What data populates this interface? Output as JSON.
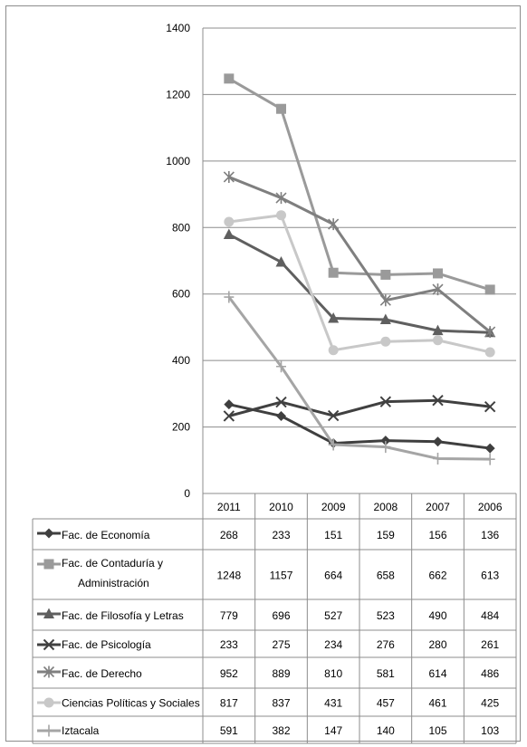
{
  "chart_data": {
    "type": "line",
    "categories": [
      "2011",
      "2010",
      "2009",
      "2008",
      "2007",
      "2006"
    ],
    "ylim": [
      0,
      1400
    ],
    "yticks": [
      0,
      200,
      400,
      600,
      800,
      1000,
      1200,
      1400
    ],
    "grid": true,
    "legend": "data-table-below",
    "series": [
      {
        "name": "Fac. de Economía",
        "name_lines": [
          "Fac. de Economía"
        ],
        "values": [
          268,
          233,
          151,
          159,
          156,
          136
        ],
        "color": "#3f3f3f",
        "marker": "diamond"
      },
      {
        "name": "Fac. de Contaduría y Administración",
        "name_lines": [
          "Fac. de Contaduría y",
          "Administración"
        ],
        "values": [
          1248,
          1157,
          664,
          658,
          662,
          613
        ],
        "color": "#9a9a9a",
        "marker": "square"
      },
      {
        "name": "Fac. de Filosofía y Letras",
        "name_lines": [
          "Fac. de Filosofía y Letras"
        ],
        "values": [
          779,
          696,
          527,
          523,
          490,
          484
        ],
        "color": "#5f5f5f",
        "marker": "triangle"
      },
      {
        "name": "Fac. de Psicología",
        "name_lines": [
          "Fac. de Psicología"
        ],
        "values": [
          233,
          275,
          234,
          276,
          280,
          261
        ],
        "color": "#404040",
        "marker": "x"
      },
      {
        "name": "Fac. de Derecho",
        "name_lines": [
          "Fac. de Derecho"
        ],
        "values": [
          952,
          889,
          810,
          581,
          614,
          486
        ],
        "color": "#7f7f7f",
        "marker": "star"
      },
      {
        "name": "Ciencias Políticas y Sociales",
        "name_lines": [
          "Ciencias Políticas y Sociales"
        ],
        "values": [
          817,
          837,
          431,
          457,
          461,
          425
        ],
        "color": "#c8c8c8",
        "marker": "circle"
      },
      {
        "name": "Iztacala",
        "name_lines": [
          "Iztacala"
        ],
        "values": [
          591,
          382,
          147,
          140,
          105,
          103
        ],
        "color": "#a5a5a5",
        "marker": "plus"
      }
    ]
  }
}
